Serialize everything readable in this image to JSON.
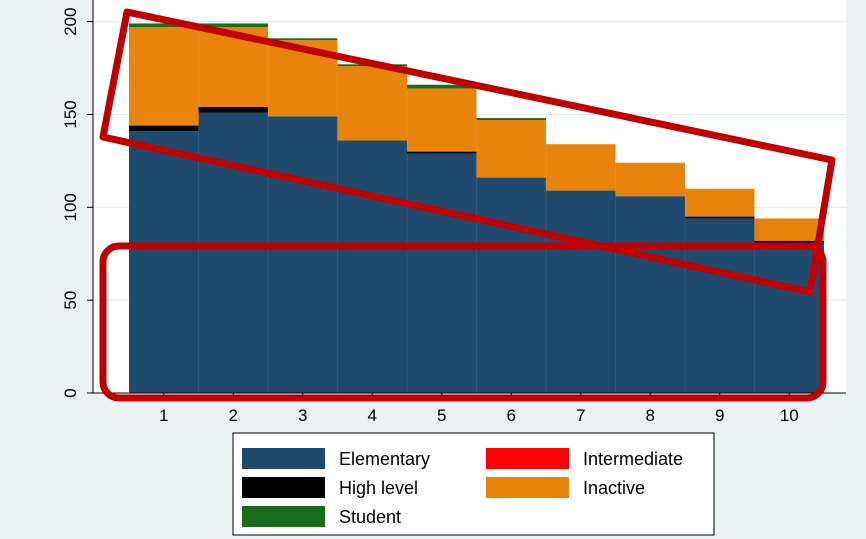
{
  "chart_data": {
    "type": "bar",
    "stacked": true,
    "categories": [
      "1",
      "2",
      "3",
      "4",
      "5",
      "6",
      "7",
      "8",
      "9",
      "10"
    ],
    "series": [
      {
        "name": "Elementary",
        "color": "#1f4a6e",
        "values": [
          141,
          151,
          149,
          136,
          129,
          116,
          109,
          106,
          94,
          81
        ]
      },
      {
        "name": "High level",
        "color": "#000000",
        "values": [
          3,
          3,
          0,
          0,
          1,
          0,
          0,
          0,
          1,
          1
        ]
      },
      {
        "name": "Intermediate",
        "color": "#ff0000",
        "values": [
          0,
          0,
          0,
          0,
          0,
          0,
          0,
          0,
          0,
          0
        ]
      },
      {
        "name": "Inactive",
        "color": "#e8830c",
        "values": [
          53,
          43,
          41,
          40,
          34,
          31,
          25,
          18,
          15,
          12
        ]
      },
      {
        "name": "Student",
        "color": "#1a6b1a",
        "values": [
          2,
          2,
          1,
          1,
          2,
          1,
          0,
          0,
          0,
          0
        ]
      }
    ],
    "yticks": [
      "0",
      "50",
      "100",
      "150",
      "200"
    ],
    "ylim": [
      0,
      215
    ],
    "grid": true,
    "legend": {
      "position": "bottom",
      "entries": [
        {
          "label": "Elementary",
          "color": "#1f4a6e"
        },
        {
          "label": "Intermediate",
          "color": "#ff0000"
        },
        {
          "label": "High level",
          "color": "#000000"
        },
        {
          "label": "Inactive",
          "color": "#e8830c"
        },
        {
          "label": "Student",
          "color": "#1a6b1a"
        }
      ]
    },
    "annotations": [
      {
        "type": "rotated-rectangle-outline",
        "color": "#c00000"
      },
      {
        "type": "rectangle-outline",
        "color": "#c00000"
      }
    ]
  }
}
